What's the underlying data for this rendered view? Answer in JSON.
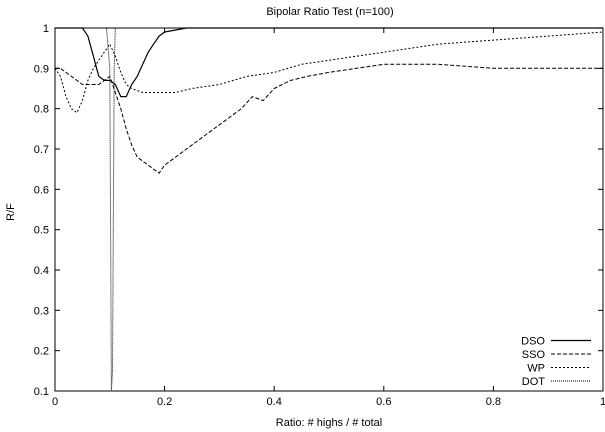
{
  "chart_data": {
    "type": "line",
    "title": "Bipolar Ratio Test (n=100)",
    "xlabel": "Ratio: # highs / # total",
    "ylabel": "R/F",
    "xlim": [
      0,
      1
    ],
    "ylim": [
      0.1,
      1
    ],
    "xticks": [
      "0",
      "0.2",
      "0.4",
      "0.6",
      "0.8",
      "1"
    ],
    "yticks": [
      "0.1",
      "0.2",
      "0.3",
      "0.4",
      "0.5",
      "0.6",
      "0.7",
      "0.8",
      "0.9",
      "1"
    ],
    "legend_position": "bottom-right",
    "grid": false,
    "series": [
      {
        "name": "DSO",
        "style": "solid",
        "x": [
          0,
          0.02,
          0.04,
          0.05,
          0.06,
          0.07,
          0.08,
          0.09,
          0.1,
          0.11,
          0.12,
          0.13,
          0.14,
          0.15,
          0.16,
          0.17,
          0.18,
          0.19,
          0.2,
          0.22,
          0.24,
          0.26,
          0.3,
          0.4,
          0.6,
          0.8,
          1.0
        ],
        "y": [
          1.0,
          1.0,
          1.0,
          1.0,
          0.98,
          0.93,
          0.88,
          0.87,
          0.87,
          0.86,
          0.83,
          0.83,
          0.86,
          0.88,
          0.91,
          0.94,
          0.96,
          0.98,
          0.99,
          0.995,
          1.0,
          1.0,
          1.0,
          1.0,
          1.0,
          1.0,
          1.0
        ]
      },
      {
        "name": "SSO",
        "style": "dashed",
        "x": [
          0,
          0.01,
          0.02,
          0.03,
          0.04,
          0.05,
          0.06,
          0.07,
          0.08,
          0.09,
          0.1,
          0.11,
          0.12,
          0.13,
          0.14,
          0.15,
          0.16,
          0.17,
          0.18,
          0.19,
          0.2,
          0.21,
          0.22,
          0.24,
          0.26,
          0.28,
          0.3,
          0.32,
          0.34,
          0.36,
          0.38,
          0.4,
          0.43,
          0.46,
          0.5,
          0.55,
          0.6,
          0.7,
          0.8,
          0.9,
          1.0
        ],
        "y": [
          0.9,
          0.9,
          0.89,
          0.88,
          0.87,
          0.86,
          0.86,
          0.86,
          0.86,
          0.87,
          0.88,
          0.84,
          0.8,
          0.75,
          0.71,
          0.68,
          0.67,
          0.66,
          0.65,
          0.64,
          0.66,
          0.67,
          0.68,
          0.7,
          0.72,
          0.74,
          0.76,
          0.78,
          0.8,
          0.83,
          0.82,
          0.85,
          0.87,
          0.88,
          0.89,
          0.9,
          0.91,
          0.91,
          0.9,
          0.9,
          0.9
        ]
      },
      {
        "name": "WP",
        "style": "dotted",
        "x": [
          0,
          0.01,
          0.02,
          0.03,
          0.04,
          0.05,
          0.06,
          0.07,
          0.08,
          0.09,
          0.1,
          0.11,
          0.12,
          0.13,
          0.14,
          0.16,
          0.18,
          0.2,
          0.22,
          0.25,
          0.3,
          0.35,
          0.4,
          0.45,
          0.5,
          0.55,
          0.6,
          0.7,
          0.8,
          0.9,
          1.0
        ],
        "y": [
          0.9,
          0.88,
          0.83,
          0.8,
          0.79,
          0.82,
          0.87,
          0.9,
          0.92,
          0.94,
          0.96,
          0.93,
          0.89,
          0.86,
          0.85,
          0.84,
          0.84,
          0.84,
          0.84,
          0.85,
          0.86,
          0.88,
          0.89,
          0.91,
          0.92,
          0.93,
          0.94,
          0.96,
          0.97,
          0.98,
          0.99
        ]
      },
      {
        "name": "DOT",
        "style": "densedot",
        "x": [
          0,
          0.02,
          0.04,
          0.06,
          0.08,
          0.09,
          0.094,
          0.1,
          0.103,
          0.105,
          0.108,
          0.11,
          0.12,
          0.14,
          0.16
        ],
        "y": [
          1.0,
          1.0,
          1.0,
          1.0,
          1.0,
          1.0,
          1.0,
          0.9,
          0.1,
          0.15,
          0.9,
          1.0,
          1.0,
          1.0,
          1.0
        ]
      }
    ]
  }
}
